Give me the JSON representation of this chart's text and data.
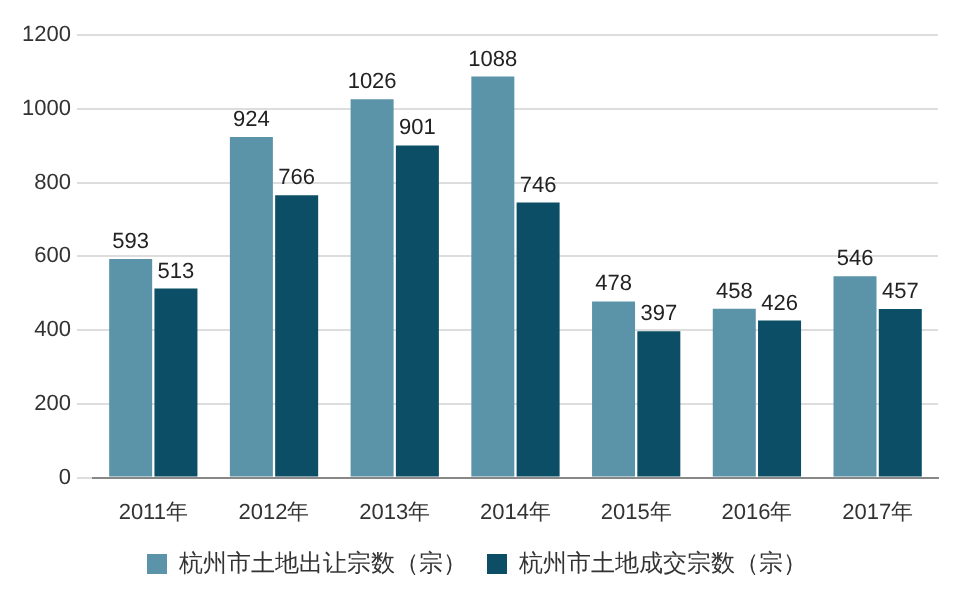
{
  "chart_data": {
    "type": "bar",
    "categories": [
      "2011年",
      "2012年",
      "2013年",
      "2014年",
      "2015年",
      "2016年",
      "2017年"
    ],
    "series": [
      {
        "name": "杭州市土地出让宗数（宗）",
        "color": "#5b93a8",
        "values": [
          593,
          924,
          1026,
          1088,
          478,
          458,
          546
        ]
      },
      {
        "name": "杭州市土地成交宗数（宗）",
        "color": "#0b4e66",
        "values": [
          513,
          766,
          901,
          746,
          397,
          426,
          457
        ]
      }
    ],
    "ylim": [
      0,
      1200
    ],
    "yticks": [
      0,
      200,
      400,
      600,
      800,
      1000,
      1200
    ],
    "grid": "y",
    "legend": "bottom",
    "data_labels": true
  }
}
